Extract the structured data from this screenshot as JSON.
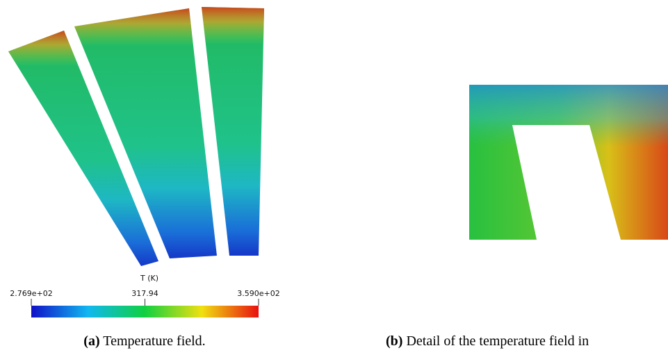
{
  "figure_a": {
    "colorbar": {
      "title": "T (K)",
      "range": [
        276.9,
        359.0
      ],
      "ticks": [
        {
          "value": 276.9,
          "label": "2.769e+02"
        },
        317.94,
        {
          "value": 359.0,
          "label": "3.590e+02"
        }
      ]
    },
    "caption": {
      "label": "(a)",
      "text": "Temperature field."
    }
  },
  "figure_b": {
    "caption": {
      "label": "(b)",
      "text": "Detail of the temperature field in"
    }
  }
}
